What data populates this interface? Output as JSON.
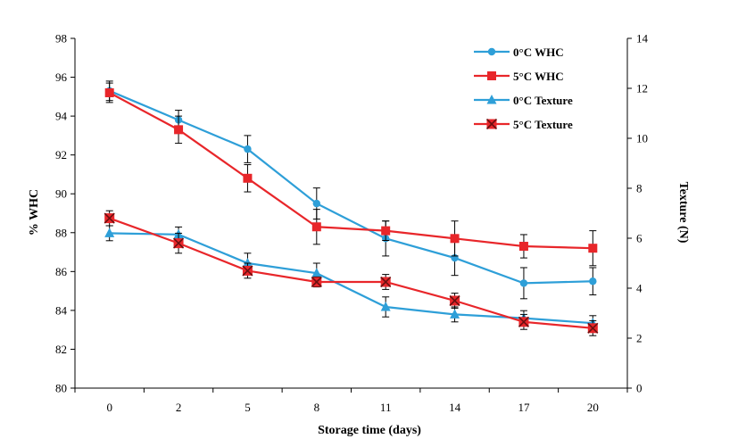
{
  "chart_data": {
    "type": "line",
    "title": "",
    "xlabel": "Storage time (days)",
    "ylabel_left": "% WHC",
    "ylabel_right": "Texture (N)",
    "categories": [
      "0",
      "2",
      "5",
      "8",
      "11",
      "14",
      "17",
      "20"
    ],
    "ylim_left": [
      80,
      98
    ],
    "ylim_right": [
      0,
      14
    ],
    "yticks_left": [
      "80",
      "82",
      "84",
      "86",
      "88",
      "90",
      "92",
      "94",
      "96",
      "98"
    ],
    "yticks_right": [
      "0",
      "2",
      "4",
      "6",
      "8",
      "10",
      "12",
      "14"
    ],
    "legend_position": "top-right",
    "series": [
      {
        "name": "0°C WHC",
        "axis": "left",
        "color": "#2e9fd8",
        "marker": "circle",
        "values": [
          95.3,
          93.8,
          92.3,
          89.5,
          87.7,
          86.7,
          85.4,
          85.5
        ],
        "errors": [
          0.5,
          0.5,
          0.7,
          0.8,
          0.9,
          0.9,
          0.8,
          0.7
        ]
      },
      {
        "name": "5°C WHC",
        "axis": "left",
        "color": "#e8262a",
        "marker": "square",
        "values": [
          95.2,
          93.3,
          90.8,
          88.3,
          88.1,
          87.7,
          87.3,
          87.2
        ],
        "errors": [
          0.5,
          0.7,
          0.7,
          0.9,
          0.5,
          0.9,
          0.6,
          0.9
        ]
      },
      {
        "name": "0°C Texture",
        "axis": "right",
        "color": "#2e9fd8",
        "marker": "triangle",
        "values": [
          6.2,
          6.15,
          5.0,
          4.6,
          3.25,
          2.95,
          2.8,
          2.6
        ],
        "errors": [
          0.3,
          0.3,
          0.4,
          0.4,
          0.4,
          0.3,
          0.3,
          0.3
        ]
      },
      {
        "name": "5°C Texture",
        "axis": "right",
        "color": "#e8262a",
        "marker": "x-square",
        "values": [
          6.8,
          5.8,
          4.7,
          4.25,
          4.25,
          3.5,
          2.65,
          2.4
        ],
        "errors": [
          0.3,
          0.4,
          0.3,
          0.2,
          0.3,
          0.3,
          0.3,
          0.3
        ]
      }
    ]
  }
}
